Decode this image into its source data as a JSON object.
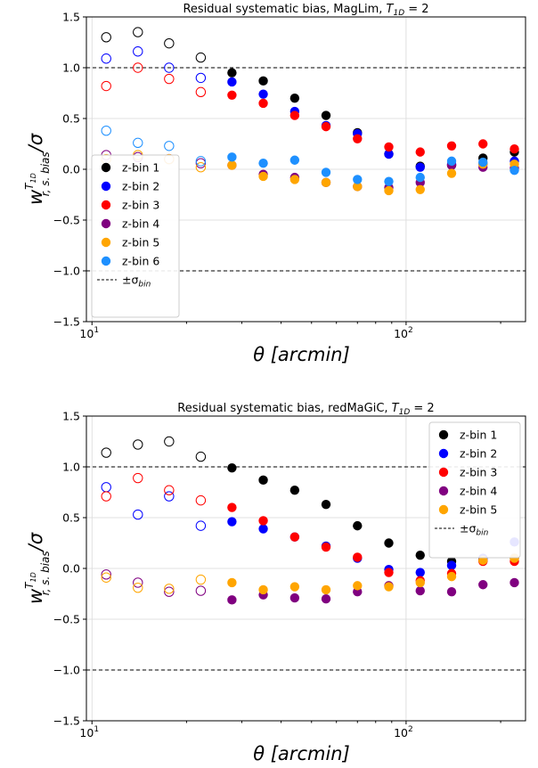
{
  "chart_data": [
    {
      "type": "scatter",
      "title_main": "Residual systematic bias, MagLim, ",
      "title_sym": "T",
      "title_sub": "1D",
      "title_tail": " =  2",
      "xlabel": "θ [arcmin]",
      "ylabel": "w^{T1D}_{r, s. bias} / σ",
      "xscale": "log",
      "xlim": [
        9.6,
        240
      ],
      "ylim": [
        -1.5,
        1.5
      ],
      "xticks": [
        {
          "value": 10,
          "label": "10",
          "sup": "1"
        },
        {
          "value": 100,
          "label": "10",
          "sup": "2"
        }
      ],
      "yticks": [
        "-1.5",
        "-1.0",
        "-0.5",
        "0.0",
        "0.5",
        "1.0",
        "1.5"
      ],
      "grid": true,
      "reference_lines": [
        1.0,
        -1.0
      ],
      "legend_position": "lower-left",
      "legend_ref_label": "±σ",
      "legend_ref_sub": "bin",
      "x": [
        11.1,
        14.0,
        17.6,
        22.2,
        27.9,
        35.1,
        44.2,
        55.6,
        70.0,
        88.1,
        110.9,
        139.6,
        175.7,
        221.2
      ],
      "filled_from_index": 4,
      "series": [
        {
          "name": "z-bin 1",
          "color": "#000000",
          "values": [
            1.3,
            1.35,
            1.24,
            1.1,
            0.95,
            0.87,
            0.7,
            0.53,
            0.36,
            0.15,
            0.03,
            0.04,
            0.11,
            0.17
          ]
        },
        {
          "name": "z-bin 2",
          "color": "#0000ff",
          "values": [
            1.09,
            1.16,
            1.0,
            0.9,
            0.86,
            0.74,
            0.57,
            0.43,
            0.35,
            0.15,
            0.02,
            0.05,
            0.05,
            0.08
          ]
        },
        {
          "name": "z-bin 3",
          "color": "#ff0000",
          "values": [
            0.82,
            1.0,
            0.89,
            0.76,
            0.73,
            0.65,
            0.53,
            0.42,
            0.3,
            0.22,
            0.17,
            0.23,
            0.25,
            0.2
          ]
        },
        {
          "name": "z-bin 4",
          "color": "#800080",
          "values": [
            0.14,
            0.12,
            0.1,
            0.06,
            0.04,
            -0.05,
            -0.08,
            -0.13,
            -0.17,
            -0.18,
            -0.13,
            0.04,
            0.02,
            0.01
          ]
        },
        {
          "name": "z-bin 5",
          "color": "#ffa500",
          "values": [
            0.1,
            0.14,
            0.1,
            0.02,
            0.04,
            -0.07,
            -0.1,
            -0.13,
            -0.17,
            -0.21,
            -0.2,
            -0.04,
            0.05,
            0.05
          ]
        },
        {
          "name": "z-bin 6",
          "color": "#1e90ff",
          "values": [
            0.38,
            0.26,
            0.23,
            0.08,
            0.12,
            0.06,
            0.09,
            -0.03,
            -0.1,
            -0.12,
            -0.08,
            0.08,
            0.07,
            -0.01
          ]
        }
      ]
    },
    {
      "type": "scatter",
      "title_main": "Residual systematic bias, redMaGiC, ",
      "title_sym": "T",
      "title_sub": "1D",
      "title_tail": " =  2",
      "xlabel": "θ [arcmin]",
      "ylabel": "w^{T1D}_{r, s. bias} / σ",
      "xscale": "log",
      "xlim": [
        9.6,
        240
      ],
      "ylim": [
        -1.5,
        1.5
      ],
      "xticks": [
        {
          "value": 10,
          "label": "10",
          "sup": "1"
        },
        {
          "value": 100,
          "label": "10",
          "sup": "2"
        }
      ],
      "yticks": [
        "-1.5",
        "-1.0",
        "-0.5",
        "0.0",
        "0.5",
        "1.0",
        "1.5"
      ],
      "grid": true,
      "reference_lines": [
        1.0,
        -1.0
      ],
      "legend_position": "upper-right",
      "legend_ref_label": "±σ",
      "legend_ref_sub": "bin",
      "x": [
        11.1,
        14.0,
        17.6,
        22.2,
        27.9,
        35.1,
        44.2,
        55.6,
        70.0,
        88.1,
        110.9,
        139.6,
        175.7,
        221.2
      ],
      "filled_from_index": 4,
      "series": [
        {
          "name": "z-bin 1",
          "color": "#000000",
          "values": [
            1.14,
            1.22,
            1.25,
            1.1,
            0.99,
            0.87,
            0.77,
            0.63,
            0.42,
            0.25,
            0.13,
            0.07,
            0.08,
            0.1
          ]
        },
        {
          "name": "z-bin 2",
          "color": "#0000ff",
          "values": [
            0.8,
            0.53,
            0.71,
            0.42,
            0.46,
            0.39,
            0.31,
            0.22,
            0.1,
            -0.01,
            -0.04,
            0.03,
            0.1,
            0.26
          ]
        },
        {
          "name": "z-bin 3",
          "color": "#ff0000",
          "values": [
            0.71,
            0.89,
            0.77,
            0.67,
            0.6,
            0.47,
            0.31,
            0.21,
            0.11,
            -0.04,
            -0.12,
            -0.05,
            0.07,
            0.07
          ]
        },
        {
          "name": "z-bin 4",
          "color": "#800080",
          "values": [
            -0.06,
            -0.14,
            -0.23,
            -0.22,
            -0.31,
            -0.26,
            -0.29,
            -0.3,
            -0.23,
            -0.17,
            -0.22,
            -0.23,
            -0.16,
            -0.14
          ]
        },
        {
          "name": "z-bin 5",
          "color": "#ffa500",
          "values": [
            -0.09,
            -0.19,
            -0.2,
            -0.11,
            -0.14,
            -0.21,
            -0.18,
            -0.21,
            -0.17,
            -0.18,
            -0.14,
            -0.08,
            0.08,
            0.1
          ]
        }
      ]
    }
  ]
}
